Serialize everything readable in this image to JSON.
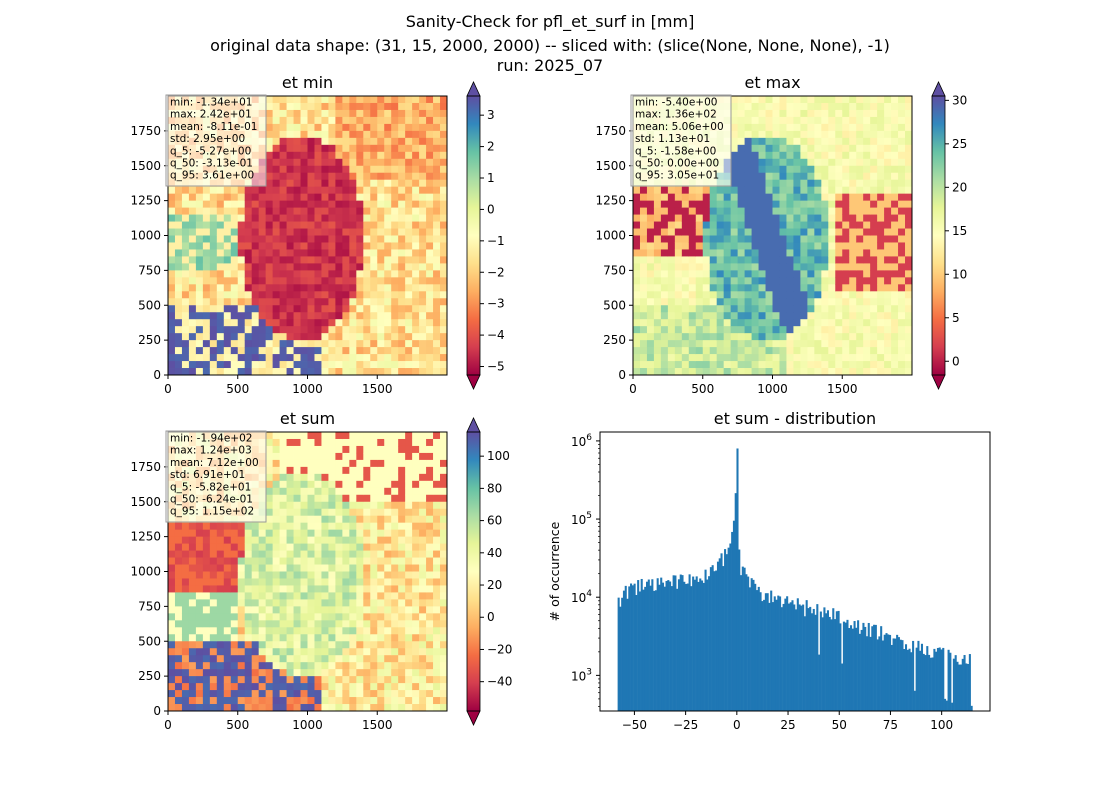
{
  "suptitle": {
    "line1": "Sanity-Check for pfl_et_surf in [mm]",
    "line2": "original data shape: (31, 15, 2000, 2000) -- sliced with: (slice(None, None, None), -1)",
    "line3": "run: 2025_07"
  },
  "panels": [
    {
      "key": "et_min",
      "title": "et min",
      "x_ticks": [
        "0",
        "500",
        "1000",
        "1500"
      ],
      "y_ticks": [
        "0",
        "250",
        "500",
        "750",
        "1000",
        "1250",
        "1500",
        "1750"
      ],
      "stats": [
        "min: -1.34e+01",
        "max: 2.42e+01",
        "mean: -8.11e-01",
        "std: 2.95e+00",
        "q_5: -5.27e+00",
        "q_50: -3.13e-01",
        "q_95: 3.61e+00"
      ],
      "colorbar": {
        "vmin": -5.27,
        "vmax": 3.61,
        "ticks": [
          -5,
          -4,
          -3,
          -2,
          -1,
          0,
          1,
          2,
          3
        ],
        "labels": [
          "−5",
          "−4",
          "−3",
          "−2",
          "−1",
          "0",
          "1",
          "2",
          "3"
        ],
        "extend": "both"
      }
    },
    {
      "key": "et_max",
      "title": "et max",
      "x_ticks": [
        "0",
        "500",
        "1000",
        "1500"
      ],
      "y_ticks": [
        "0",
        "250",
        "500",
        "750",
        "1000",
        "1250",
        "1500",
        "1750"
      ],
      "stats": [
        "min: -5.40e+00",
        "max: 1.36e+02",
        "mean: 5.06e+00",
        "std: 1.13e+01",
        "q_5: -1.58e+00",
        "q_50: 0.00e+00",
        "q_95: 3.05e+01"
      ],
      "colorbar": {
        "vmin": -1.58,
        "vmax": 30.5,
        "ticks": [
          0,
          5,
          10,
          15,
          20,
          25,
          30
        ],
        "labels": [
          "0",
          "5",
          "10",
          "15",
          "20",
          "25",
          "30"
        ],
        "extend": "both"
      }
    },
    {
      "key": "et_sum",
      "title": "et sum",
      "x_ticks": [
        "0",
        "500",
        "1000",
        "1500"
      ],
      "y_ticks": [
        "0",
        "250",
        "500",
        "750",
        "1000",
        "1250",
        "1500",
        "1750"
      ],
      "stats": [
        "min: -1.94e+02",
        "max: 1.24e+03",
        "mean: 7.12e+00",
        "std: 6.91e+01",
        "q_5: -5.82e+01",
        "q_50: -6.24e-01",
        "q_95: 1.15e+02"
      ],
      "colorbar": {
        "vmin": -58.2,
        "vmax": 115,
        "ticks": [
          -40,
          -20,
          0,
          20,
          40,
          60,
          80,
          100
        ],
        "labels": [
          "−40",
          "−20",
          "0",
          "20",
          "40",
          "60",
          "80",
          "100"
        ],
        "extend": "both"
      }
    }
  ],
  "histogram": {
    "title": "et sum - distribution",
    "ylabel": "# of occurrence",
    "x_ticks": [
      -50,
      -25,
      0,
      25,
      50,
      75,
      100
    ],
    "x_tick_labels": [
      "−50",
      "−25",
      "0",
      "25",
      "50",
      "75",
      "100"
    ],
    "xlim": [
      -66.8,
      123.6
    ],
    "y_ticks": [
      1000,
      10000,
      100000,
      1000000
    ],
    "y_tick_labels": [
      "10",
      "10",
      "10",
      "10"
    ],
    "y_tick_exponents": [
      "3",
      "4",
      "5",
      "6"
    ],
    "ylim": [
      350,
      1300000
    ],
    "color": "#1f77b4"
  },
  "chart_data": [
    {
      "type": "heatmap",
      "title": "et min",
      "xlim": [
        0,
        2000
      ],
      "ylim": [
        0,
        2000
      ],
      "colormap": "Spectral",
      "colorbar_range": [
        -5.27,
        3.61
      ],
      "summary_stats": {
        "min": -13.4,
        "max": 24.2,
        "mean": -0.811,
        "std": 2.95,
        "q_5": -5.27,
        "q_50": -0.313,
        "q_95": 3.61
      }
    },
    {
      "type": "heatmap",
      "title": "et max",
      "xlim": [
        0,
        2000
      ],
      "ylim": [
        0,
        2000
      ],
      "colormap": "Spectral",
      "colorbar_range": [
        -1.58,
        30.5
      ],
      "summary_stats": {
        "min": -5.4,
        "max": 136,
        "mean": 5.06,
        "std": 11.3,
        "q_5": -1.58,
        "q_50": 0.0,
        "q_95": 30.5
      }
    },
    {
      "type": "heatmap",
      "title": "et sum",
      "xlim": [
        0,
        2000
      ],
      "ylim": [
        0,
        2000
      ],
      "colormap": "Spectral",
      "colorbar_range": [
        -58.2,
        115
      ],
      "summary_stats": {
        "min": -194,
        "max": 1240,
        "mean": 7.12,
        "std": 69.1,
        "q_5": -58.2,
        "q_50": -0.624,
        "q_95": 115
      }
    },
    {
      "type": "bar",
      "title": "et sum - distribution",
      "xlabel": "",
      "ylabel": "# of occurrence",
      "y_scale": "log",
      "xlim": [
        -66.8,
        123.6
      ],
      "ylim": [
        350,
        1300000
      ],
      "bin_range": [
        -58.2,
        115
      ],
      "peak": {
        "x": 0,
        "y": 800000
      },
      "x": [
        -57,
        -55,
        -50,
        -45,
        -40,
        -35,
        -30,
        -25,
        -20,
        -15,
        -10,
        -7,
        -5,
        -3,
        -2,
        -1,
        0,
        1,
        2,
        5,
        10,
        15,
        20,
        25,
        30,
        35,
        40,
        45,
        50,
        55,
        60,
        65,
        70,
        75,
        80,
        85,
        90,
        95,
        100,
        105,
        110,
        114
      ],
      "values": [
        9500,
        11000,
        13500,
        14000,
        14000,
        15000,
        15500,
        16000,
        18000,
        20000,
        26000,
        31000,
        38000,
        50000,
        65000,
        100000,
        800000,
        50000,
        25000,
        16000,
        12000,
        11000,
        9500,
        8500,
        8000,
        7200,
        6800,
        6000,
        5500,
        5000,
        4200,
        3800,
        3500,
        3000,
        2700,
        2400,
        2200,
        2000,
        1900,
        1700,
        1600,
        1500
      ]
    }
  ]
}
